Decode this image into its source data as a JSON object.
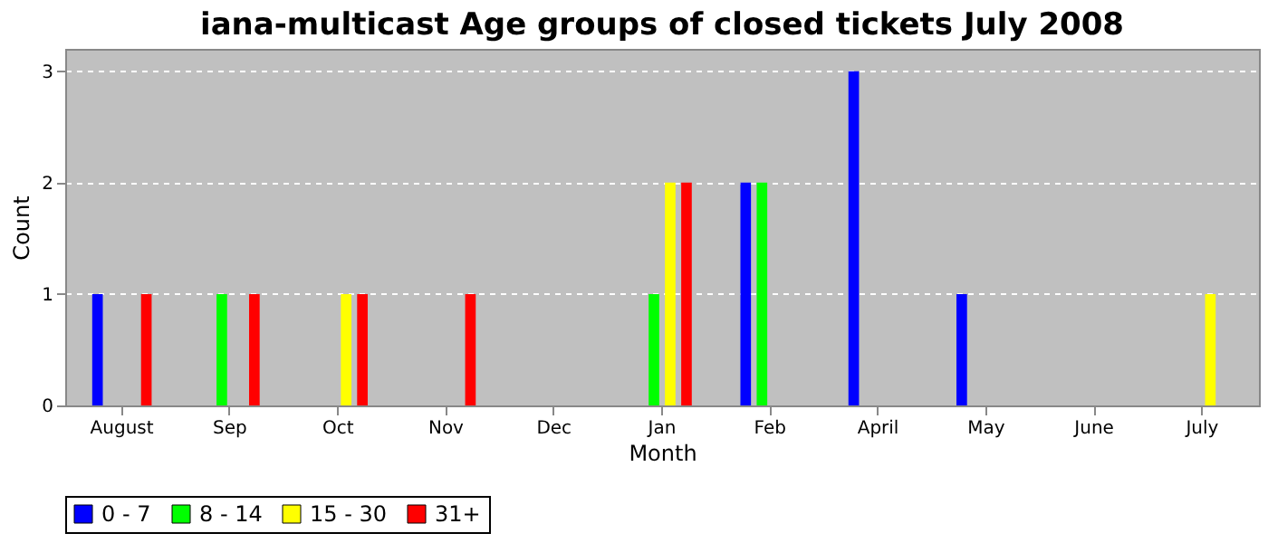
{
  "chart_data": {
    "type": "bar",
    "title": "iana-multicast Age groups of closed tickets July 2008",
    "xlabel": "Month",
    "ylabel": "Count",
    "categories": [
      "August",
      "Sep",
      "Oct",
      "Nov",
      "Dec",
      "Jan",
      "Feb",
      "April",
      "May",
      "June",
      "July"
    ],
    "series": [
      {
        "name": "0 - 7",
        "color": "#0000ff",
        "values": [
          1,
          0,
          0,
          0,
          0,
          0,
          2,
          3,
          1,
          0,
          0
        ]
      },
      {
        "name": "8 - 14",
        "color": "#00ff00",
        "values": [
          0,
          1,
          0,
          0,
          0,
          1,
          2,
          0,
          0,
          0,
          0
        ]
      },
      {
        "name": "15 - 30",
        "color": "#ffff00",
        "values": [
          0,
          0,
          1,
          0,
          0,
          2,
          0,
          0,
          0,
          0,
          1
        ]
      },
      {
        "name": "31+",
        "color": "#ff0000",
        "values": [
          1,
          1,
          1,
          1,
          0,
          2,
          0,
          0,
          0,
          0,
          0
        ]
      }
    ],
    "ylim": [
      0,
      3.2
    ],
    "yticks": [
      0,
      1,
      2,
      3
    ],
    "grid": "y",
    "legend": "bottom"
  }
}
